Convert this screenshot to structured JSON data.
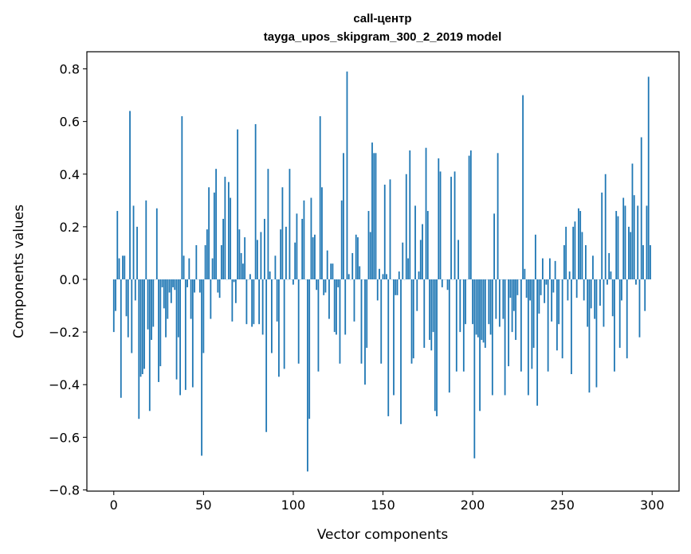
{
  "chart_data": {
    "type": "bar",
    "title": "call-центр",
    "subtitle": "tayga_upos_skipgram_300_2_2019 model",
    "xlabel": "Vector components",
    "ylabel": "Components values",
    "xlim": [
      -15,
      315
    ],
    "ylim": [
      -0.8,
      0.87
    ],
    "xticks": [
      0,
      50,
      100,
      150,
      200,
      250,
      300
    ],
    "xtick_labels": [
      "0",
      "50",
      "100",
      "150",
      "200",
      "250",
      "300"
    ],
    "yticks": [
      -0.8,
      -0.6,
      -0.4,
      -0.2,
      0.0,
      0.2,
      0.4,
      0.6,
      0.8
    ],
    "ytick_labels": [
      "−0.8",
      "−0.6",
      "−0.4",
      "−0.2",
      "0.0",
      "0.2",
      "0.4",
      "0.6",
      "0.8"
    ],
    "grid": false,
    "bar_color": "#1f77b4",
    "values": [
      -0.2,
      -0.12,
      0.26,
      0.08,
      -0.45,
      0.09,
      0.09,
      -0.14,
      -0.22,
      0.64,
      -0.28,
      0.28,
      -0.08,
      0.2,
      -0.53,
      -0.37,
      -0.36,
      -0.34,
      0.3,
      -0.19,
      -0.5,
      -0.23,
      -0.18,
      0.0,
      0.27,
      -0.39,
      -0.33,
      -0.03,
      -0.11,
      -0.22,
      -0.15,
      -0.05,
      -0.09,
      -0.03,
      -0.04,
      -0.38,
      -0.22,
      -0.44,
      0.62,
      0.09,
      -0.42,
      -0.03,
      0.08,
      -0.15,
      -0.41,
      -0.05,
      0.13,
      0.0,
      -0.05,
      -0.67,
      -0.28,
      0.13,
      0.19,
      0.35,
      -0.15,
      0.08,
      0.33,
      0.42,
      -0.05,
      -0.07,
      0.13,
      0.23,
      0.39,
      0.0,
      0.37,
      0.31,
      -0.16,
      -0.01,
      -0.09,
      0.57,
      0.19,
      0.1,
      0.06,
      0.16,
      -0.17,
      0.0,
      0.02,
      -0.18,
      -0.17,
      0.59,
      0.15,
      -0.17,
      0.18,
      -0.21,
      0.23,
      -0.58,
      0.42,
      0.03,
      -0.28,
      0.0,
      0.09,
      -0.16,
      -0.37,
      0.19,
      0.35,
      -0.34,
      0.2,
      0.0,
      0.42,
      0.0,
      -0.02,
      0.14,
      0.25,
      -0.32,
      0.0,
      0.23,
      0.3,
      0.0,
      -0.73,
      -0.53,
      0.31,
      0.16,
      0.17,
      -0.04,
      -0.35,
      0.62,
      0.35,
      -0.06,
      -0.05,
      0.11,
      -0.15,
      0.06,
      0.06,
      -0.2,
      -0.21,
      -0.03,
      -0.32,
      0.3,
      0.48,
      -0.21,
      0.79,
      0.02,
      0.0,
      0.1,
      -0.16,
      0.17,
      0.16,
      0.05,
      -0.32,
      0.0,
      -0.4,
      -0.26,
      0.26,
      0.18,
      0.52,
      0.48,
      0.48,
      -0.08,
      0.04,
      -0.32,
      0.02,
      0.36,
      0.02,
      -0.52,
      0.38,
      0.0,
      -0.44,
      -0.06,
      -0.06,
      0.03,
      -0.55,
      0.14,
      0.0,
      0.4,
      0.08,
      0.49,
      -0.32,
      -0.3,
      0.28,
      -0.12,
      0.03,
      0.15,
      0.21,
      -0.26,
      0.5,
      0.26,
      -0.23,
      -0.27,
      -0.2,
      -0.5,
      -0.52,
      0.46,
      0.41,
      -0.03,
      0.0,
      0.0,
      -0.04,
      -0.43,
      0.39,
      0.0,
      0.41,
      -0.35,
      0.15,
      -0.2,
      0.0,
      -0.35,
      -0.17,
      0.0,
      0.47,
      0.49,
      -0.17,
      -0.68,
      -0.21,
      -0.22,
      -0.5,
      -0.23,
      -0.24,
      -0.26,
      0.0,
      -0.17,
      -0.21,
      -0.44,
      0.25,
      -0.15,
      0.48,
      -0.18,
      0.0,
      -0.15,
      -0.44,
      0.0,
      -0.33,
      -0.07,
      -0.2,
      -0.12,
      -0.23,
      -0.06,
      0.0,
      -0.35,
      0.7,
      0.04,
      -0.07,
      -0.44,
      -0.08,
      -0.34,
      -0.26,
      0.17,
      -0.48,
      -0.13,
      -0.06,
      0.08,
      -0.09,
      -0.02,
      -0.35,
      0.08,
      -0.16,
      -0.05,
      0.07,
      -0.27,
      -0.17,
      0.0,
      -0.3,
      0.13,
      0.2,
      -0.08,
      0.03,
      -0.36,
      0.2,
      0.22,
      -0.07,
      0.27,
      0.26,
      0.18,
      -0.08,
      0.13,
      -0.18,
      -0.43,
      -0.11,
      0.09,
      -0.15,
      -0.41,
      0.0,
      -0.1,
      0.33,
      -0.18,
      0.4,
      -0.02,
      0.1,
      0.03,
      -0.14,
      -0.35,
      0.26,
      0.24,
      -0.26,
      -0.08,
      0.31,
      0.28,
      -0.3,
      0.2,
      0.18,
      0.44,
      0.32,
      -0.02,
      0.28,
      -0.22,
      0.54,
      0.13,
      -0.12,
      0.28,
      0.77,
      0.13
    ]
  }
}
